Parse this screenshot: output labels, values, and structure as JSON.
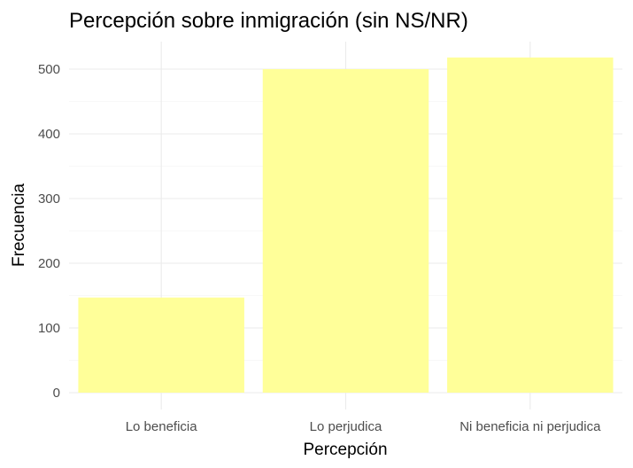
{
  "chart_data": {
    "type": "bar",
    "title": "Percepción sobre inmigración (sin NS/NR)",
    "xlabel": "Percepción",
    "ylabel": "Frecuencia",
    "categories": [
      "Lo beneficia",
      "Lo perjudica",
      "Ni beneficia ni perjudica"
    ],
    "values": [
      147,
      500,
      518
    ],
    "ylim": [
      0,
      520
    ],
    "yticks": [
      0,
      100,
      200,
      300,
      400,
      500
    ],
    "bar_color": "#FFFF99",
    "grid": true,
    "legend": "none"
  }
}
